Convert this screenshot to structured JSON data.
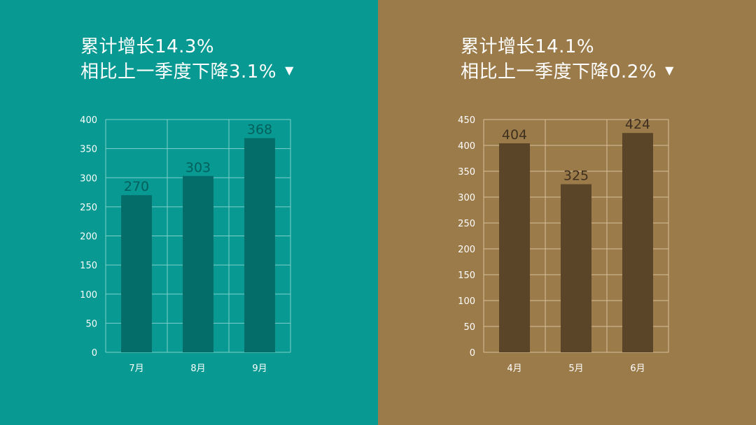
{
  "colors": {
    "left_background": "#079992",
    "left_bar": "#056d69",
    "left_value_text": "#04605c",
    "left_grid": "#7fcfc9",
    "right_background": "#9c7b4a",
    "right_bar": "#5a4529",
    "right_value_text": "#3f3020",
    "right_grid": "#d8c29c",
    "headline_text": "#ffffff"
  },
  "panels": [
    {
      "headline": {
        "line1": "累计增长14.3%",
        "line2": "相比上一季度下降3.1%",
        "trend_icon": "down-triangle-icon",
        "trend_symbol": "▼"
      }
    },
    {
      "headline": {
        "line1": "累计增长14.1%",
        "line2": "相比上一季度下降0.2%",
        "trend_icon": "down-triangle-icon",
        "trend_symbol": "▼"
      }
    }
  ],
  "chart_data": [
    {
      "type": "bar",
      "categories": [
        "7月",
        "8月",
        "9月"
      ],
      "values": [
        270,
        303,
        368
      ],
      "value_labels": [
        "270",
        "303",
        "368"
      ],
      "ylim": [
        0,
        400
      ],
      "yticks": [
        0,
        50,
        100,
        150,
        200,
        250,
        300,
        350,
        400
      ],
      "grid": true,
      "legend": "none"
    },
    {
      "type": "bar",
      "categories": [
        "4月",
        "5月",
        "6月"
      ],
      "values": [
        404,
        325,
        424
      ],
      "value_labels": [
        "404",
        "325",
        "424"
      ],
      "ylim": [
        0,
        450
      ],
      "yticks": [
        0,
        50,
        100,
        150,
        200,
        250,
        300,
        350,
        400,
        450
      ],
      "grid": true,
      "legend": "none"
    }
  ]
}
